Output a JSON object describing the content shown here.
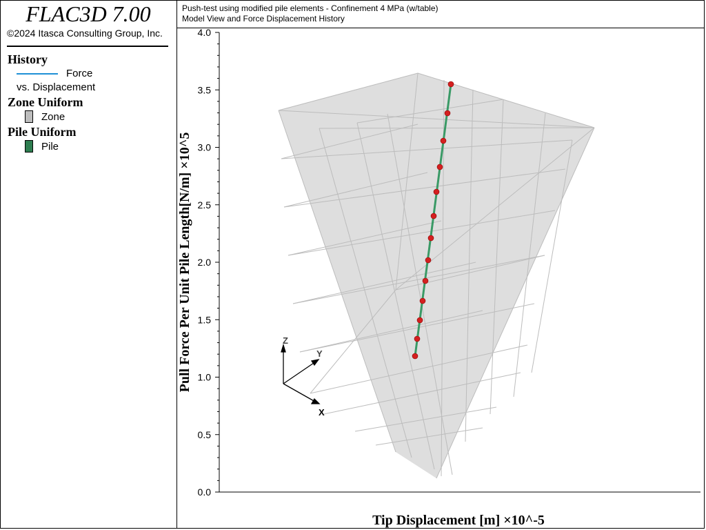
{
  "app": {
    "title": "FLAC3D 7.00",
    "copyright": "©2024 Itasca Consulting Group, Inc."
  },
  "header": {
    "line1": "Push-test using modified pile elements - Confinement 4 MPa (w/table)",
    "line2": "Model View and Force Displacement History"
  },
  "legend": {
    "history": {
      "title": "History",
      "item1": "Force",
      "item2": "vs. Displacement",
      "color": "#1e8fd6"
    },
    "zone": {
      "title": "Zone Uniform",
      "label": "Zone",
      "color": "#bdbdbd"
    },
    "pile": {
      "title": "Pile Uniform",
      "label": "Pile",
      "color": "#2e7d50"
    }
  },
  "axes_triad": {
    "z": "Z",
    "y": "Y",
    "x": "X"
  },
  "chart_data": {
    "type": "line",
    "xlabel": "Tip Displacement [m] ×10^-5",
    "ylabel": "Pull Force Per Unit Pile Length[N/m] ×10^5",
    "ylim": [
      0,
      4.0
    ],
    "yticks": [
      "0.0",
      "0.5",
      "1.0",
      "1.5",
      "2.0",
      "2.5",
      "3.0",
      "3.5",
      "4.0"
    ],
    "series": [
      {
        "name": "Force vs. Displacement",
        "values": []
      }
    ]
  },
  "colors": {
    "pile_line": "#3a9a66",
    "node": "#d42020",
    "zone_fill": "#dedede",
    "grid": "#b8b8b8"
  }
}
